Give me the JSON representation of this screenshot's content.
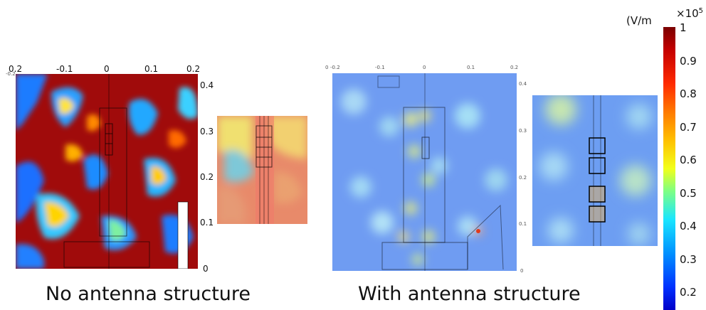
{
  "left_panel": {
    "top_ticks": [
      "0.2",
      "-0.1",
      "0",
      "0.1",
      "0.2"
    ],
    "top_tick_extra": "-0.2",
    "right_ticks": [
      "0.4",
      "0.3",
      "0.2",
      "0.1",
      "0"
    ],
    "caption": "No antenna structure"
  },
  "right_panel": {
    "top_ticks": [
      "0",
      "-0.2",
      "-0.1",
      "0",
      "0.1",
      "0.2"
    ],
    "right_ticks": [
      "0.4",
      "0.3",
      "0.2",
      "0.1",
      "0"
    ],
    "caption": "With antenna structure"
  },
  "colorbar": {
    "unit": "(V/m",
    "exponent": "×10",
    "exponent_power": "5",
    "ticks": [
      "1",
      "0.9",
      "0.8",
      "0.7",
      "0.6",
      "0.5",
      "0.4",
      "0.3",
      "0.2"
    ]
  },
  "colors": {
    "high": "#8b0000",
    "mid": "#ffe000",
    "low": "#0000c8"
  }
}
